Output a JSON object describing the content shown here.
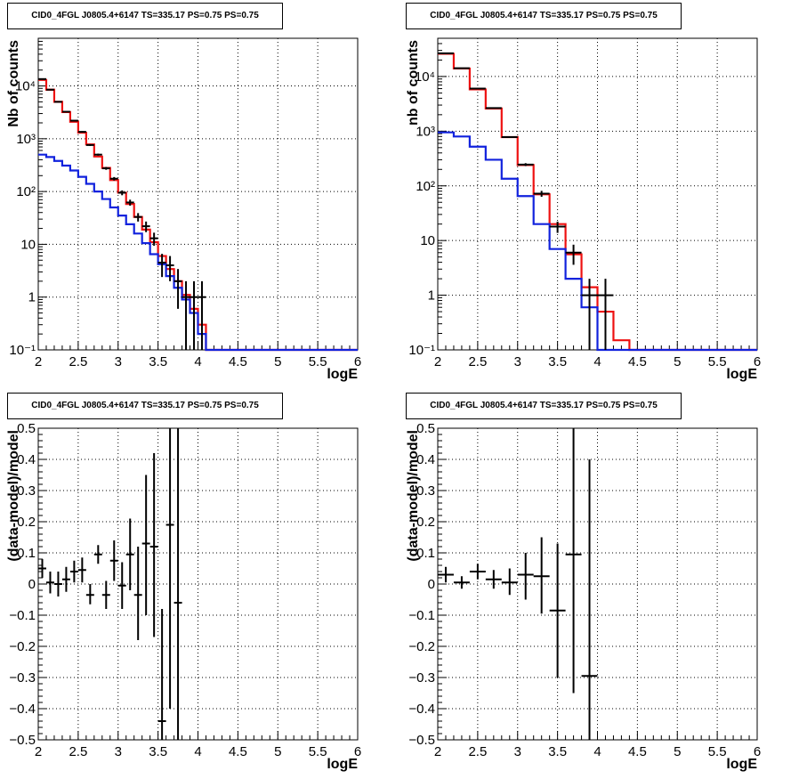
{
  "title_text": "CID0_4FGL J0805.4+6147 TS=335.17 PS=0.75 PS=0.75",
  "colors": {
    "data": "#000000",
    "model_total": "#ee1111",
    "model_source": "#1122dd",
    "grid": "#000000"
  },
  "chart_data": [
    {
      "type": "line",
      "panel": "top-left",
      "title": "CID0_4FGL J0805.4+6147 TS=335.17 PS=0.75 PS=0.75",
      "xlabel": "logE",
      "ylabel": "Nb of counts",
      "xlim": [
        2,
        6
      ],
      "ylim": [
        0.1,
        80000
      ],
      "yscale": "log",
      "grid": true,
      "xticks": [
        "2",
        "2.5",
        "3",
        "3.5",
        "4",
        "4.5",
        "5",
        "5.5",
        "6"
      ],
      "yticks": [
        {
          "value": 0.1,
          "label": "10⁻¹"
        },
        {
          "value": 1,
          "label": "1"
        },
        {
          "value": 10,
          "label": "10"
        },
        {
          "value": 100,
          "label": "10²"
        },
        {
          "value": 1000,
          "label": "10³"
        },
        {
          "value": 10000,
          "label": "10⁴"
        }
      ],
      "bin_edges": [
        2.0,
        2.1,
        2.2,
        2.3,
        2.4,
        2.5,
        2.6,
        2.7,
        2.8,
        2.9,
        3.0,
        3.1,
        3.2,
        3.3,
        3.4,
        3.5,
        3.6,
        3.7,
        3.8,
        3.9,
        4.0,
        4.1,
        4.2,
        4.3,
        4.4,
        4.5,
        4.6,
        4.7,
        4.8,
        4.9,
        5.0,
        5.1,
        5.2,
        5.3,
        5.4,
        5.5,
        5.6,
        5.7,
        5.8,
        5.9,
        6.0
      ],
      "series": [
        {
          "name": "",
          "role": "model_total",
          "values": [
            13000,
            8500,
            5000,
            3200,
            2100,
            1300,
            780,
            460,
            280,
            165,
            95,
            58,
            33,
            19,
            11,
            6.0,
            3.4,
            2.0,
            1.1,
            0.6,
            0.3,
            0.1,
            0.1,
            0.1,
            0.1,
            0.1,
            0.1,
            0.1,
            0.1,
            0.1,
            0.1,
            0.1,
            0.1,
            0.1,
            0.1,
            0.1,
            0.1,
            0.1,
            0.1,
            0.1
          ]
        },
        {
          "name": "",
          "role": "model_source",
          "values": [
            500,
            450,
            380,
            310,
            250,
            190,
            140,
            100,
            72,
            50,
            35,
            24,
            16,
            10.5,
            6.5,
            4.2,
            2.5,
            1.5,
            0.9,
            0.5,
            0.2,
            0.1,
            0.1,
            0.1,
            0.1,
            0.1,
            0.1,
            0.1,
            0.1,
            0.1,
            0.1,
            0.1,
            0.1,
            0.1,
            0.1,
            0.1,
            0.1,
            0.1,
            0.1,
            0.1
          ]
        },
        {
          "name": "",
          "role": "data",
          "points": [
            {
              "x": 2.05,
              "y": 13500,
              "lo": 13300,
              "hi": 13700
            },
            {
              "x": 2.15,
              "y": 8500,
              "lo": 8400,
              "hi": 8600
            },
            {
              "x": 2.25,
              "y": 5000,
              "lo": 4930,
              "hi": 5070
            },
            {
              "x": 2.35,
              "y": 3250,
              "lo": 3190,
              "hi": 3310
            },
            {
              "x": 2.45,
              "y": 2200,
              "lo": 2150,
              "hi": 2250
            },
            {
              "x": 2.55,
              "y": 1350,
              "lo": 1310,
              "hi": 1390
            },
            {
              "x": 2.65,
              "y": 760,
              "lo": 730,
              "hi": 790
            },
            {
              "x": 2.75,
              "y": 500,
              "lo": 478,
              "hi": 522
            },
            {
              "x": 2.85,
              "y": 275,
              "lo": 258,
              "hi": 292
            },
            {
              "x": 2.95,
              "y": 175,
              "lo": 162,
              "hi": 188
            },
            {
              "x": 3.05,
              "y": 95,
              "lo": 85,
              "hi": 105
            },
            {
              "x": 3.15,
              "y": 62,
              "lo": 54,
              "hi": 70
            },
            {
              "x": 3.25,
              "y": 33,
              "lo": 27,
              "hi": 39
            },
            {
              "x": 3.35,
              "y": 22,
              "lo": 17,
              "hi": 27
            },
            {
              "x": 3.45,
              "y": 13,
              "lo": 9.4,
              "hi": 16.6
            },
            {
              "x": 3.55,
              "y": 4.5,
              "lo": 2.4,
              "hi": 6.6
            },
            {
              "x": 3.65,
              "y": 4.0,
              "lo": 2.0,
              "hi": 6.0
            },
            {
              "x": 3.75,
              "y": 2.0,
              "lo": 0.6,
              "hi": 3.4
            },
            {
              "x": 3.85,
              "y": 1.0,
              "lo": 0.1,
              "hi": 2.0
            },
            {
              "x": 3.95,
              "y": 1.0,
              "lo": 0.1,
              "hi": 2.0
            },
            {
              "x": 4.05,
              "y": 1.0,
              "lo": 0.1,
              "hi": 2.0
            }
          ]
        }
      ]
    },
    {
      "type": "line",
      "panel": "top-right",
      "title": "CID0_4FGL J0805.4+6147 TS=335.17 PS=0.75 PS=0.75",
      "xlabel": "logE",
      "ylabel": "nb of counts",
      "xlim": [
        2,
        6
      ],
      "ylim": [
        0.1,
        50000
      ],
      "yscale": "log",
      "grid": true,
      "xticks": [
        "2",
        "2.5",
        "3",
        "3.5",
        "4",
        "4.5",
        "5",
        "5.5",
        "6"
      ],
      "yticks": [
        {
          "value": 0.1,
          "label": "10⁻¹"
        },
        {
          "value": 1,
          "label": "1"
        },
        {
          "value": 10,
          "label": "10"
        },
        {
          "value": 100,
          "label": "10²"
        },
        {
          "value": 1000,
          "label": "10³"
        },
        {
          "value": 10000,
          "label": "10⁴"
        }
      ],
      "bin_edges": [
        2.0,
        2.2,
        2.4,
        2.6,
        2.8,
        3.0,
        3.2,
        3.4,
        3.6,
        3.8,
        4.0,
        4.2,
        4.4,
        4.6,
        4.8,
        5.0,
        5.2,
        5.4,
        5.6,
        5.8,
        6.0
      ],
      "series": [
        {
          "name": "",
          "role": "model_total",
          "values": [
            26000,
            14000,
            5800,
            2600,
            780,
            240,
            70,
            20,
            5.6,
            1.4,
            0.5,
            0.15,
            0.1,
            0.1,
            0.1,
            0.1,
            0.1,
            0.1,
            0.1,
            0.1
          ]
        },
        {
          "name": "",
          "role": "model_source",
          "values": [
            950,
            800,
            520,
            300,
            135,
            65,
            20,
            7.0,
            2.0,
            0.6,
            0.1,
            0.1,
            0.1,
            0.1,
            0.1,
            0.1,
            0.1,
            0.1,
            0.1,
            0.1
          ]
        },
        {
          "name": "",
          "role": "data",
          "points": [
            {
              "x": 2.1,
              "y": 26500,
              "lo": 26350,
              "hi": 26650
            },
            {
              "x": 2.3,
              "y": 14200,
              "lo": 14080,
              "hi": 14320
            },
            {
              "x": 2.5,
              "y": 6000,
              "lo": 5920,
              "hi": 6080
            },
            {
              "x": 2.7,
              "y": 2650,
              "lo": 2600,
              "hi": 2700
            },
            {
              "x": 2.9,
              "y": 780,
              "lo": 752,
              "hi": 808
            },
            {
              "x": 3.1,
              "y": 245,
              "lo": 230,
              "hi": 260
            },
            {
              "x": 3.3,
              "y": 72,
              "lo": 63,
              "hi": 81
            },
            {
              "x": 3.5,
              "y": 18,
              "lo": 13.8,
              "hi": 22.2
            },
            {
              "x": 3.7,
              "y": 6.0,
              "lo": 3.6,
              "hi": 8.4
            },
            {
              "x": 3.9,
              "y": 1.0,
              "lo": 0.1,
              "hi": 2.0
            },
            {
              "x": 4.1,
              "y": 1.0,
              "lo": 0.1,
              "hi": 2.0
            }
          ]
        }
      ]
    },
    {
      "type": "scatter",
      "panel": "bottom-left",
      "title": "CID0_4FGL J0805.4+6147 TS=335.17 PS=0.75 PS=0.75",
      "xlabel": "logE",
      "ylabel": "(data-model)/model",
      "xlim": [
        2,
        6
      ],
      "ylim": [
        -0.5,
        0.5
      ],
      "yscale": "linear",
      "grid": true,
      "xticks": [
        "2",
        "2.5",
        "3",
        "3.5",
        "4",
        "4.5",
        "5",
        "5.5",
        "6"
      ],
      "yticks": [
        {
          "value": -0.5,
          "label": "−0.5"
        },
        {
          "value": -0.4,
          "label": "−0.4"
        },
        {
          "value": -0.3,
          "label": "−0.3"
        },
        {
          "value": -0.2,
          "label": "−0.2"
        },
        {
          "value": -0.1,
          "label": "−0.1"
        },
        {
          "value": 0,
          "label": "0"
        },
        {
          "value": 0.1,
          "label": "0.1"
        },
        {
          "value": 0.2,
          "label": "0.2"
        },
        {
          "value": 0.3,
          "label": "0.3"
        },
        {
          "value": 0.4,
          "label": "0.4"
        },
        {
          "value": 0.5,
          "label": "0.5"
        }
      ],
      "series": [
        {
          "name": "",
          "role": "data",
          "xhalf": 0.05,
          "points": [
            {
              "x": 2.05,
              "y": 0.05,
              "lo": 0.02,
              "hi": 0.08
            },
            {
              "x": 2.15,
              "y": 0.005,
              "lo": -0.03,
              "hi": 0.04
            },
            {
              "x": 2.25,
              "y": 0.0,
              "lo": -0.04,
              "hi": 0.04
            },
            {
              "x": 2.35,
              "y": 0.015,
              "lo": -0.025,
              "hi": 0.055
            },
            {
              "x": 2.45,
              "y": 0.04,
              "lo": 0.005,
              "hi": 0.075
            },
            {
              "x": 2.55,
              "y": 0.045,
              "lo": 0.005,
              "hi": 0.085
            },
            {
              "x": 2.65,
              "y": -0.035,
              "lo": -0.065,
              "hi": 0.0
            },
            {
              "x": 2.75,
              "y": 0.095,
              "lo": 0.065,
              "hi": 0.125
            },
            {
              "x": 2.85,
              "y": -0.035,
              "lo": -0.08,
              "hi": 0.01
            },
            {
              "x": 2.95,
              "y": 0.075,
              "lo": 0.01,
              "hi": 0.14
            },
            {
              "x": 3.05,
              "y": -0.005,
              "lo": -0.08,
              "hi": 0.07
            },
            {
              "x": 3.15,
              "y": 0.095,
              "lo": -0.02,
              "hi": 0.21
            },
            {
              "x": 3.25,
              "y": -0.035,
              "lo": -0.18,
              "hi": 0.12
            },
            {
              "x": 3.35,
              "y": 0.13,
              "lo": -0.1,
              "hi": 0.35
            },
            {
              "x": 3.45,
              "y": 0.12,
              "lo": -0.17,
              "hi": 0.42
            },
            {
              "x": 3.55,
              "y": -0.44,
              "lo": -0.5,
              "hi": -0.08
            },
            {
              "x": 3.65,
              "y": 0.19,
              "lo": -0.4,
              "hi": 0.5
            },
            {
              "x": 3.75,
              "y": -0.06,
              "lo": -0.5,
              "hi": 0.5
            }
          ]
        }
      ]
    },
    {
      "type": "scatter",
      "panel": "bottom-right",
      "title": "CID0_4FGL J0805.4+6147 TS=335.17 PS=0.75 PS=0.75",
      "xlabel": "logE",
      "ylabel": "(data-model)/model",
      "xlim": [
        2,
        6
      ],
      "ylim": [
        -0.5,
        0.5
      ],
      "yscale": "linear",
      "grid": true,
      "xticks": [
        "2",
        "2.5",
        "3",
        "3.5",
        "4",
        "4.5",
        "5",
        "5.5",
        "6"
      ],
      "yticks": [
        {
          "value": -0.5,
          "label": "−0.5"
        },
        {
          "value": -0.4,
          "label": "−0.4"
        },
        {
          "value": -0.3,
          "label": "−0.3"
        },
        {
          "value": -0.2,
          "label": "−0.2"
        },
        {
          "value": -0.1,
          "label": "−0.1"
        },
        {
          "value": 0,
          "label": "0"
        },
        {
          "value": 0.1,
          "label": "0.1"
        },
        {
          "value": 0.2,
          "label": "0.2"
        },
        {
          "value": 0.3,
          "label": "0.3"
        },
        {
          "value": 0.4,
          "label": "0.4"
        },
        {
          "value": 0.5,
          "label": "0.5"
        }
      ],
      "series": [
        {
          "name": "",
          "role": "data",
          "xhalf": 0.1,
          "points": [
            {
              "x": 2.1,
              "y": 0.03,
              "lo": 0.005,
              "hi": 0.055
            },
            {
              "x": 2.3,
              "y": 0.005,
              "lo": -0.015,
              "hi": 0.025
            },
            {
              "x": 2.5,
              "y": 0.04,
              "lo": 0.015,
              "hi": 0.065
            },
            {
              "x": 2.7,
              "y": 0.015,
              "lo": -0.015,
              "hi": 0.045
            },
            {
              "x": 2.9,
              "y": 0.005,
              "lo": -0.035,
              "hi": 0.05
            },
            {
              "x": 3.1,
              "y": 0.03,
              "lo": -0.05,
              "hi": 0.1
            },
            {
              "x": 3.3,
              "y": 0.025,
              "lo": -0.095,
              "hi": 0.15
            },
            {
              "x": 3.5,
              "y": -0.085,
              "lo": -0.3,
              "hi": 0.13
            },
            {
              "x": 3.7,
              "y": 0.095,
              "lo": -0.35,
              "hi": 0.5
            },
            {
              "x": 3.9,
              "y": -0.295,
              "lo": -0.5,
              "hi": 0.4
            }
          ]
        }
      ]
    }
  ]
}
